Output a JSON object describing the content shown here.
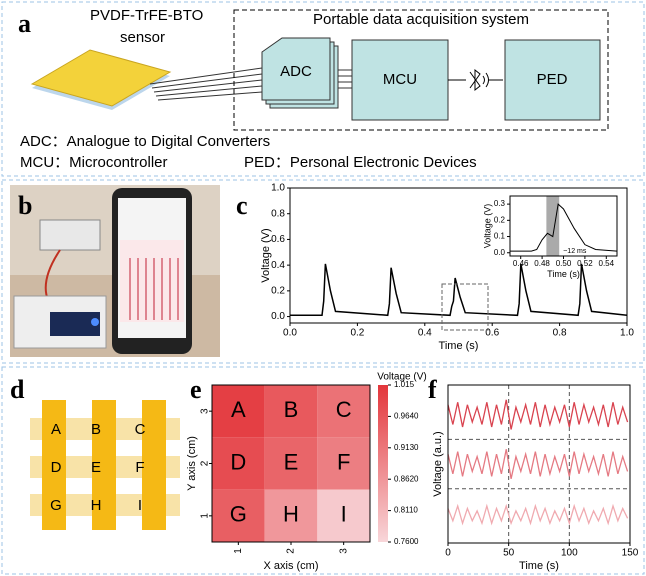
{
  "panels": {
    "a": {
      "label": "a",
      "sensor_name": "PVDF-TrFE-BTO",
      "sensor_word": "sensor",
      "system_title": "Portable data acquisition system",
      "blocks": [
        "ADC",
        "MCU",
        "PED"
      ],
      "legend": [
        "ADC：Analogue to Digital Converters",
        "MCU：Microcontroller",
        "PED：Personal Electronic Devices"
      ]
    },
    "b": {
      "label": "b"
    },
    "c": {
      "label": "c"
    },
    "d": {
      "label": "d",
      "letters": [
        "A",
        "B",
        "C",
        "D",
        "E",
        "F",
        "G",
        "H",
        "I"
      ]
    },
    "e": {
      "label": "e"
    },
    "f": {
      "label": "f"
    }
  },
  "chart_data": [
    {
      "type": "line",
      "xlabel": "Time (s)",
      "ylabel": "Voltage (V)",
      "x": [
        0,
        0.095,
        0.1,
        0.105,
        0.12,
        0.135,
        0.29,
        0.295,
        0.3,
        0.315,
        0.33,
        0.475,
        0.48,
        0.485,
        0.49,
        0.505,
        0.52,
        0.675,
        0.68,
        0.685,
        0.7,
        0.715,
        0.855,
        0.86,
        0.865,
        0.88,
        0.895,
        1.0
      ],
      "series": [
        {
          "color": "#000000",
          "values": [
            0.01,
            0.01,
            0.12,
            0.41,
            0.2,
            0.04,
            0.01,
            0.1,
            0.38,
            0.18,
            0.03,
            0.01,
            0.08,
            0.12,
            0.3,
            0.15,
            0.03,
            0.01,
            0.1,
            0.41,
            0.2,
            0.04,
            0.01,
            0.1,
            0.41,
            0.2,
            0.04,
            0.01
          ]
        }
      ],
      "xlim": [
        0,
        1
      ],
      "ylim": [
        -0.05,
        1
      ],
      "xticks": [
        {
          "value": 0,
          "label": "0.0"
        },
        0.2,
        0.4,
        0.6,
        0.8,
        {
          "value": 1,
          "label": "1.0"
        }
      ],
      "yticks": [
        {
          "value": 0,
          "label": "0.0"
        },
        0.2,
        0.4,
        0.6,
        0.8,
        {
          "value": 1,
          "label": "1.0"
        }
      ]
    },
    {
      "type": "line",
      "xlabel": "Time (s)",
      "ylabel": "Voltage (V)",
      "annotation": "~12 ms",
      "span": [
        0.484,
        0.496
      ],
      "x": [
        0.45,
        0.47,
        0.475,
        0.48,
        0.485,
        0.49,
        0.495,
        0.5,
        0.51,
        0.52,
        0.53,
        0.55
      ],
      "series": [
        {
          "color": "#000000",
          "values": [
            0.01,
            0.01,
            0.02,
            0.08,
            0.12,
            0.1,
            0.3,
            0.27,
            0.15,
            0.05,
            0.02,
            0.01
          ]
        }
      ],
      "xlim": [
        0.45,
        0.55
      ],
      "ylim": [
        -0.02,
        0.35
      ],
      "xticks": [
        0.46,
        0.48,
        {
          "value": 0.5,
          "label": "0.50"
        },
        0.52,
        0.54
      ],
      "yticks": [
        {
          "value": 0,
          "label": "0.0"
        },
        0.1,
        0.2,
        0.3
      ]
    },
    {
      "type": "heatmap",
      "title": "Voltage (V)",
      "xlabel": "X axis (cm)",
      "ylabel": "Y axis (cm)",
      "xcategories": [
        "1",
        "2",
        "3"
      ],
      "ycategories": [
        "3",
        "2",
        "1"
      ],
      "cell_labels": [
        [
          "A",
          "B",
          "C"
        ],
        [
          "D",
          "E",
          "F"
        ],
        [
          "G",
          "H",
          "I"
        ]
      ],
      "values": [
        [
          1.0,
          0.96,
          0.92
        ],
        [
          0.98,
          0.94,
          0.9
        ],
        [
          0.95,
          0.86,
          0.78
        ]
      ],
      "clim": [
        0.76,
        1.015
      ],
      "colors": [
        "#f8d6d9",
        "#e3363b"
      ],
      "cticks": [
        1.015,
        {
          "value": 0.964,
          "label": "0.9640"
        },
        {
          "value": 0.913,
          "label": "0.9130"
        },
        {
          "value": 0.862,
          "label": "0.8620"
        },
        {
          "value": 0.811,
          "label": "0.8110"
        },
        {
          "value": 0.76,
          "label": "0.7600"
        }
      ]
    },
    {
      "type": "line",
      "xlabel": "Time (s)",
      "ylabel": "Voltage (a.u.)",
      "x": [
        0,
        4,
        8,
        12,
        16,
        20,
        24,
        28,
        32,
        36,
        40,
        44,
        48,
        52,
        56,
        60,
        64,
        68,
        72,
        76,
        80,
        84,
        88,
        92,
        96,
        100,
        104,
        108,
        112,
        116,
        120,
        124,
        128,
        132,
        136,
        140,
        144,
        148
      ],
      "series": [
        {
          "color": "#d9434f",
          "values": [
            2.8,
            2.4,
            2.85,
            2.35,
            2.8,
            2.45,
            2.75,
            2.4,
            2.85,
            2.35,
            2.8,
            2.4,
            2.9,
            2.3,
            2.75,
            2.45,
            2.8,
            2.4,
            2.85,
            2.35,
            2.8,
            2.4,
            2.75,
            2.45,
            2.8,
            2.35,
            2.85,
            2.4,
            2.8,
            2.45,
            2.75,
            2.4,
            2.8,
            2.35,
            2.85,
            2.4,
            2.75,
            2.45
          ]
        },
        {
          "color": "#e57a83",
          "values": [
            1.8,
            1.4,
            1.85,
            1.35,
            1.8,
            1.45,
            1.75,
            1.4,
            1.85,
            1.35,
            1.8,
            1.4,
            1.9,
            1.3,
            1.75,
            1.45,
            1.8,
            1.4,
            1.85,
            1.35,
            1.8,
            1.4,
            1.75,
            1.45,
            1.8,
            1.35,
            1.85,
            1.4,
            1.8,
            1.45,
            1.75,
            1.4,
            1.8,
            1.35,
            1.85,
            1.4,
            1.75,
            1.45
          ]
        },
        {
          "color": "#f0aab0",
          "values": [
            0.7,
            0.45,
            0.75,
            0.4,
            0.7,
            0.45,
            0.65,
            0.4,
            0.75,
            0.4,
            0.7,
            0.45,
            0.75,
            0.4,
            0.65,
            0.45,
            0.7,
            0.4,
            0.75,
            0.45,
            0.7,
            0.4,
            0.65,
            0.45,
            0.7,
            0.4,
            0.75,
            0.45,
            0.7,
            0.4,
            0.65,
            0.45,
            0.7,
            0.4,
            0.75,
            0.45,
            0.7,
            0.5
          ]
        }
      ],
      "xlim": [
        0,
        150
      ],
      "ylim": [
        0,
        3.2
      ],
      "xticks": [
        0,
        50,
        100,
        150
      ],
      "vlines": [
        50,
        100
      ],
      "hlines": [
        1.1,
        2.1
      ]
    }
  ]
}
